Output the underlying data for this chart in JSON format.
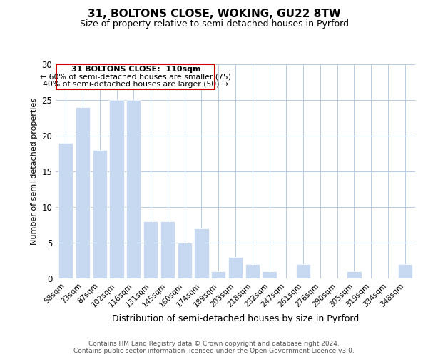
{
  "title": "31, BOLTONS CLOSE, WOKING, GU22 8TW",
  "subtitle": "Size of property relative to semi-detached houses in Pyrford",
  "xlabel": "Distribution of semi-detached houses by size in Pyrford",
  "ylabel": "Number of semi-detached properties",
  "categories": [
    "58sqm",
    "73sqm",
    "87sqm",
    "102sqm",
    "116sqm",
    "131sqm",
    "145sqm",
    "160sqm",
    "174sqm",
    "189sqm",
    "203sqm",
    "218sqm",
    "232sqm",
    "247sqm",
    "261sqm",
    "276sqm",
    "290sqm",
    "305sqm",
    "319sqm",
    "334sqm",
    "348sqm"
  ],
  "values": [
    19,
    24,
    18,
    25,
    25,
    8,
    8,
    5,
    7,
    1,
    3,
    2,
    1,
    0,
    2,
    0,
    0,
    1,
    0,
    0,
    2
  ],
  "bar_color": "#c6d9f0",
  "ylim": [
    0,
    30
  ],
  "yticks": [
    0,
    5,
    10,
    15,
    20,
    25,
    30
  ],
  "annotation_title": "31 BOLTONS CLOSE:  110sqm",
  "annotation_line1": "← 60% of semi-detached houses are smaller (75)",
  "annotation_line2": "40% of semi-detached houses are larger (50) →",
  "annotation_box_edge": "#cc0000",
  "footer_line1": "Contains HM Land Registry data © Crown copyright and database right 2024.",
  "footer_line2": "Contains public sector information licensed under the Open Government Licence v3.0.",
  "background_color": "#ffffff",
  "grid_color": "#b8cce4"
}
